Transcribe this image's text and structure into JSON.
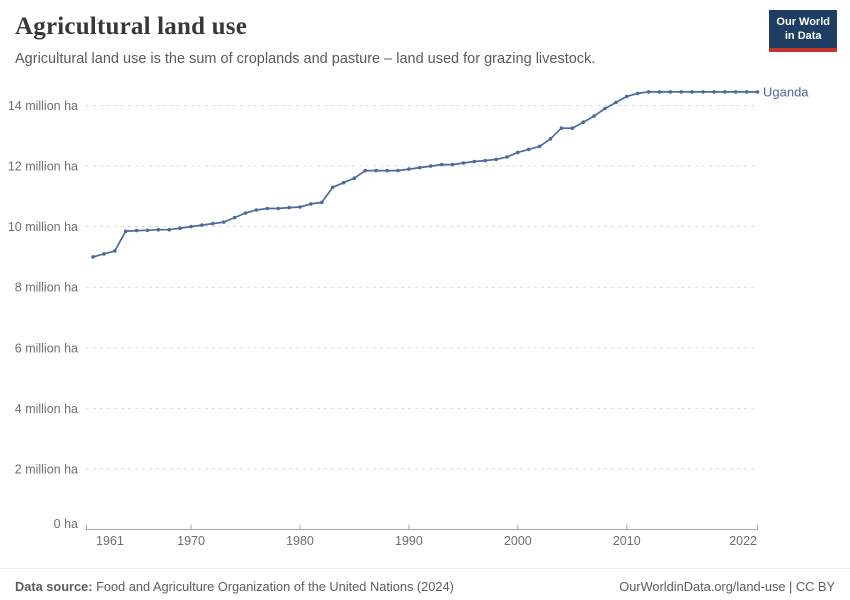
{
  "header": {
    "title": "Agricultural land use",
    "subtitle": "Agricultural land use is the sum of croplands and pasture – land used for grazing livestock."
  },
  "logo": {
    "line1": "Our World",
    "line2": "in Data"
  },
  "colors": {
    "logo_navy": "#1d3d63",
    "logo_red": "#bf352c",
    "series_blue": "#4C6A9C",
    "gridline": "#d9d9d9",
    "axis": "#a8a8a8",
    "tick_text": "#6f6f6f"
  },
  "chart_data": {
    "type": "line",
    "title": "Agricultural land use",
    "subtitle": "Agricultural land use is the sum of croplands and pasture – land used for grazing livestock.",
    "xlabel": "",
    "ylabel": "",
    "unit": "million ha",
    "ylim": [
      0,
      14.45
    ],
    "grid": "horizontal-dashed",
    "legend": "end-of-line-label",
    "x": [
      1961,
      1962,
      1963,
      1964,
      1965,
      1966,
      1967,
      1968,
      1969,
      1970,
      1971,
      1972,
      1973,
      1974,
      1975,
      1976,
      1977,
      1978,
      1979,
      1980,
      1981,
      1982,
      1983,
      1984,
      1985,
      1986,
      1987,
      1988,
      1989,
      1990,
      1991,
      1992,
      1993,
      1994,
      1995,
      1996,
      1997,
      1998,
      1999,
      2000,
      2001,
      2002,
      2003,
      2004,
      2005,
      2006,
      2007,
      2008,
      2009,
      2010,
      2011,
      2012,
      2013,
      2014,
      2015,
      2016,
      2017,
      2018,
      2019,
      2020,
      2021,
      2022
    ],
    "series": [
      {
        "name": "Uganda",
        "color": "#4C6A9C",
        "values": [
          9.0,
          9.1,
          9.2,
          9.85,
          9.87,
          9.88,
          9.9,
          9.9,
          9.95,
          10.0,
          10.05,
          10.1,
          10.15,
          10.3,
          10.45,
          10.55,
          10.6,
          10.6,
          10.63,
          10.65,
          10.75,
          10.8,
          11.3,
          11.45,
          11.6,
          11.85,
          11.85,
          11.85,
          11.85,
          11.9,
          11.95,
          12.0,
          12.05,
          12.05,
          12.1,
          12.15,
          12.18,
          12.22,
          12.3,
          12.45,
          12.55,
          12.65,
          12.9,
          13.25,
          13.25,
          13.45,
          13.65,
          13.9,
          14.1,
          14.3,
          14.4,
          14.45,
          14.45,
          14.45,
          14.45,
          14.45,
          14.45,
          14.45,
          14.45,
          14.45,
          14.45,
          14.45
        ]
      }
    ],
    "yticks": [
      {
        "value": 0,
        "label": "0 ha"
      },
      {
        "value": 2,
        "label": "2 million ha"
      },
      {
        "value": 4,
        "label": "4 million ha"
      },
      {
        "value": 6,
        "label": "6 million ha"
      },
      {
        "value": 8,
        "label": "8 million ha"
      },
      {
        "value": 10,
        "label": "10 million ha"
      },
      {
        "value": 12,
        "label": "12 million ha"
      },
      {
        "value": 14,
        "label": "14 million ha"
      }
    ],
    "xticks": [
      {
        "year": 1961,
        "label": "1961"
      },
      {
        "year": 1970,
        "label": "1970"
      },
      {
        "year": 1980,
        "label": "1980"
      },
      {
        "year": 1990,
        "label": "1990"
      },
      {
        "year": 2000,
        "label": "2000"
      },
      {
        "year": 2010,
        "label": "2010"
      },
      {
        "year": 2022,
        "label": "2022"
      }
    ]
  },
  "footer": {
    "source_label": "Data source:",
    "source_value": "Food and Agriculture Organization of the United Nations (2024)",
    "citation": "OurWorldinData.org/land-use | CC BY"
  }
}
